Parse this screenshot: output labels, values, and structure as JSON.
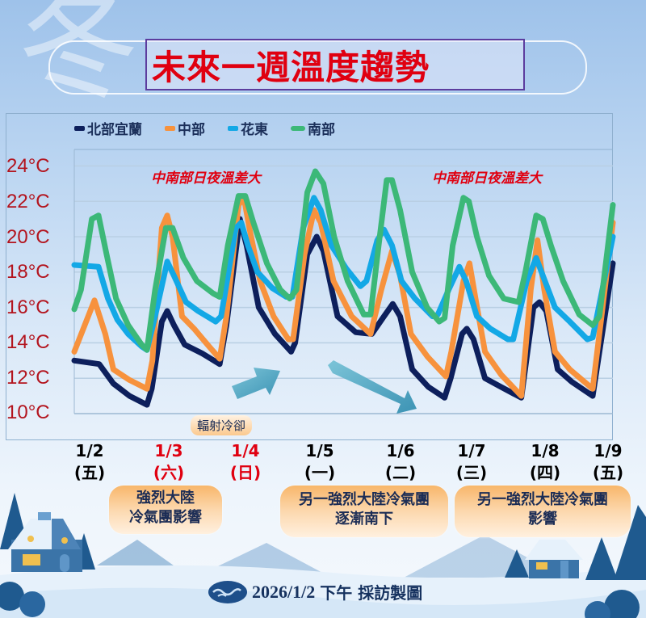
{
  "header": {
    "title": "未來一週溫度趨勢",
    "background_glyph": "冬"
  },
  "legend": [
    {
      "label": "北部宜蘭",
      "color": "#0d1f5c"
    },
    {
      "label": "中部",
      "color": "#f7923d"
    },
    {
      "label": "花東",
      "color": "#13a8e6"
    },
    {
      "label": "南部",
      "color": "#3cb878"
    }
  ],
  "annotations": {
    "left": "中南部日夜溫差大",
    "right": "中南部日夜溫差大",
    "radiative_cooling": "輻射冷卻"
  },
  "callouts": [
    {
      "line1": "強烈大陸",
      "line2": "冷氣團影響"
    },
    {
      "line1": "另一強烈大陸冷氣團",
      "line2": "逐漸南下"
    },
    {
      "line1": "另一強烈大陸冷氣團",
      "line2": "影響"
    }
  ],
  "footer": {
    "date": "2026/1/2",
    "text": "下午 採訪製圖"
  },
  "chart_data": {
    "type": "line",
    "title": "未來一週溫度趨勢",
    "xlabel": "",
    "ylabel": "",
    "ylim": [
      10,
      25
    ],
    "yticks": [
      "24°C",
      "22°C",
      "20°C",
      "18°C",
      "16°C",
      "14°C",
      "12°C",
      "10°C"
    ],
    "categories": [
      "1/2 (五)",
      "1/3 (六)",
      "1/4 (日)",
      "1/5 (一)",
      "1/6 (二)",
      "1/7 (三)",
      "1/8 (四)",
      "1/9 (五)"
    ],
    "x_labels": [
      {
        "date": "1/2",
        "day": "(五)",
        "color": "#142a5c"
      },
      {
        "date": "1/3",
        "day": "(六)",
        "color": "#e00010"
      },
      {
        "date": "1/4",
        "day": "(日)",
        "color": "#e00010"
      },
      {
        "date": "1/5",
        "day": "(一)",
        "color": "#142a5c"
      },
      {
        "date": "1/6",
        "day": "(二)",
        "color": "#142a5c"
      },
      {
        "date": "1/7",
        "day": "(三)",
        "color": "#142a5c"
      },
      {
        "date": "1/8",
        "day": "(四)",
        "color": "#142a5c"
      },
      {
        "date": "1/9",
        "day": "(五)",
        "color": "#142a5c"
      }
    ],
    "grid": true,
    "legend_position": "top",
    "x_unit": "day offset from 1/2 00:00 (0 = 1/2, 8 = 1/10)",
    "series": [
      {
        "name": "北部宜蘭",
        "color": "#0d1f5c",
        "points": [
          [
            0,
            13.0
          ],
          [
            0.37,
            12.8
          ],
          [
            0.58,
            11.7
          ],
          [
            0.82,
            11.0
          ],
          [
            1.08,
            10.5
          ],
          [
            1.15,
            11.4
          ],
          [
            1.3,
            15.2
          ],
          [
            1.38,
            15.8
          ],
          [
            1.48,
            15.0
          ],
          [
            1.64,
            13.9
          ],
          [
            1.9,
            13.4
          ],
          [
            2.16,
            12.8
          ],
          [
            2.26,
            15.0
          ],
          [
            2.46,
            21.0
          ],
          [
            2.56,
            19.5
          ],
          [
            2.74,
            16.0
          ],
          [
            2.98,
            14.5
          ],
          [
            3.22,
            13.5
          ],
          [
            3.28,
            14.0
          ],
          [
            3.46,
            19.0
          ],
          [
            3.6,
            20.0
          ],
          [
            3.7,
            19.2
          ],
          [
            3.91,
            15.5
          ],
          [
            4.18,
            14.6
          ],
          [
            4.42,
            14.5
          ],
          [
            4.6,
            15.5
          ],
          [
            4.73,
            16.2
          ],
          [
            4.84,
            15.5
          ],
          [
            5.02,
            12.5
          ],
          [
            5.26,
            11.5
          ],
          [
            5.5,
            10.9
          ],
          [
            5.59,
            12.0
          ],
          [
            5.76,
            14.5
          ],
          [
            5.83,
            14.8
          ],
          [
            5.93,
            14.2
          ],
          [
            6.1,
            12.0
          ],
          [
            6.34,
            11.5
          ],
          [
            6.64,
            10.9
          ],
          [
            6.82,
            16.0
          ],
          [
            6.91,
            16.3
          ],
          [
            7.01,
            15.8
          ],
          [
            7.18,
            12.5
          ],
          [
            7.39,
            11.8
          ],
          [
            7.7,
            11.0
          ],
          [
            8.0,
            18.5
          ]
        ]
      },
      {
        "name": "中部",
        "color": "#f7923d",
        "points": [
          [
            0,
            13.5
          ],
          [
            0.3,
            16.4
          ],
          [
            0.46,
            14.5
          ],
          [
            0.58,
            12.5
          ],
          [
            0.82,
            11.9
          ],
          [
            1.08,
            11.4
          ],
          [
            1.16,
            13.0
          ],
          [
            1.3,
            20.5
          ],
          [
            1.38,
            21.2
          ],
          [
            1.46,
            20.0
          ],
          [
            1.6,
            15.5
          ],
          [
            1.78,
            14.8
          ],
          [
            2.0,
            13.8
          ],
          [
            2.16,
            13.1
          ],
          [
            2.26,
            15.5
          ],
          [
            2.44,
            21.8
          ],
          [
            2.52,
            22.2
          ],
          [
            2.6,
            20.5
          ],
          [
            2.76,
            17.5
          ],
          [
            2.96,
            15.5
          ],
          [
            3.18,
            14.2
          ],
          [
            3.25,
            14.2
          ],
          [
            3.42,
            19.0
          ],
          [
            3.56,
            21.5
          ],
          [
            3.66,
            20.8
          ],
          [
            3.85,
            17.5
          ],
          [
            4.12,
            15.5
          ],
          [
            4.4,
            14.5
          ],
          [
            4.56,
            17.0
          ],
          [
            4.72,
            19.2
          ],
          [
            4.84,
            17.8
          ],
          [
            5.0,
            14.5
          ],
          [
            5.25,
            13.2
          ],
          [
            5.52,
            12.1
          ],
          [
            5.6,
            13.5
          ],
          [
            5.78,
            17.5
          ],
          [
            5.87,
            18.5
          ],
          [
            5.96,
            16.5
          ],
          [
            6.1,
            13.5
          ],
          [
            6.34,
            12.2
          ],
          [
            6.64,
            11.0
          ],
          [
            6.78,
            17.0
          ],
          [
            6.88,
            19.8
          ],
          [
            6.98,
            17.0
          ],
          [
            7.14,
            13.5
          ],
          [
            7.36,
            12.5
          ],
          [
            7.7,
            11.4
          ],
          [
            8.0,
            20.8
          ]
        ]
      },
      {
        "name": "花東",
        "color": "#13a8e6",
        "points": [
          [
            0,
            18.4
          ],
          [
            0.36,
            18.3
          ],
          [
            0.5,
            16.5
          ],
          [
            0.64,
            15.3
          ],
          [
            0.8,
            14.5
          ],
          [
            1.0,
            13.8
          ],
          [
            1.08,
            13.6
          ],
          [
            1.2,
            15.5
          ],
          [
            1.38,
            18.6
          ],
          [
            1.48,
            17.8
          ],
          [
            1.66,
            16.3
          ],
          [
            1.84,
            15.8
          ],
          [
            2.1,
            15.2
          ],
          [
            2.18,
            15.5
          ],
          [
            2.4,
            20.5
          ],
          [
            2.48,
            20.8
          ],
          [
            2.58,
            19.5
          ],
          [
            2.72,
            18.0
          ],
          [
            2.94,
            17.1
          ],
          [
            3.15,
            16.6
          ],
          [
            3.24,
            16.6
          ],
          [
            3.4,
            20.5
          ],
          [
            3.56,
            22.2
          ],
          [
            3.66,
            21.5
          ],
          [
            3.82,
            19.5
          ],
          [
            4.04,
            18.2
          ],
          [
            4.25,
            17.2
          ],
          [
            4.34,
            17.5
          ],
          [
            4.5,
            19.8
          ],
          [
            4.6,
            20.4
          ],
          [
            4.72,
            19.5
          ],
          [
            4.86,
            17.5
          ],
          [
            5.06,
            16.5
          ],
          [
            5.32,
            15.5
          ],
          [
            5.4,
            15.6
          ],
          [
            5.56,
            17.0
          ],
          [
            5.72,
            18.3
          ],
          [
            5.82,
            17.5
          ],
          [
            5.98,
            15.5
          ],
          [
            6.18,
            14.8
          ],
          [
            6.44,
            14.2
          ],
          [
            6.52,
            14.2
          ],
          [
            6.72,
            17.5
          ],
          [
            6.86,
            18.8
          ],
          [
            6.96,
            17.8
          ],
          [
            7.14,
            16.0
          ],
          [
            7.36,
            15.2
          ],
          [
            7.62,
            14.2
          ],
          [
            7.7,
            14.3
          ],
          [
            8.0,
            20.0
          ]
        ]
      },
      {
        "name": "南部",
        "color": "#3cb878",
        "points": [
          [
            0,
            15.9
          ],
          [
            0.1,
            17.0
          ],
          [
            0.26,
            21.0
          ],
          [
            0.36,
            21.2
          ],
          [
            0.48,
            19.0
          ],
          [
            0.62,
            16.5
          ],
          [
            0.8,
            15.0
          ],
          [
            1.0,
            13.9
          ],
          [
            1.08,
            13.6
          ],
          [
            1.2,
            17.0
          ],
          [
            1.36,
            20.5
          ],
          [
            1.46,
            20.5
          ],
          [
            1.62,
            18.8
          ],
          [
            1.82,
            17.5
          ],
          [
            2.06,
            16.8
          ],
          [
            2.16,
            16.6
          ],
          [
            2.28,
            19.5
          ],
          [
            2.44,
            22.3
          ],
          [
            2.54,
            22.3
          ],
          [
            2.66,
            20.8
          ],
          [
            2.86,
            18.5
          ],
          [
            3.06,
            17.0
          ],
          [
            3.2,
            16.5
          ],
          [
            3.3,
            17.0
          ],
          [
            3.46,
            22.5
          ],
          [
            3.58,
            23.7
          ],
          [
            3.7,
            23.0
          ],
          [
            3.86,
            20.0
          ],
          [
            4.06,
            17.5
          ],
          [
            4.3,
            15.6
          ],
          [
            4.4,
            15.6
          ],
          [
            4.52,
            19.5
          ],
          [
            4.64,
            23.2
          ],
          [
            4.72,
            23.2
          ],
          [
            4.84,
            21.5
          ],
          [
            5.02,
            18.0
          ],
          [
            5.24,
            16.0
          ],
          [
            5.42,
            15.2
          ],
          [
            5.5,
            15.4
          ],
          [
            5.62,
            19.5
          ],
          [
            5.78,
            22.2
          ],
          [
            5.86,
            22.0
          ],
          [
            5.98,
            20.0
          ],
          [
            6.16,
            17.8
          ],
          [
            6.38,
            16.5
          ],
          [
            6.6,
            16.3
          ],
          [
            6.7,
            18.0
          ],
          [
            6.86,
            21.2
          ],
          [
            6.96,
            21.0
          ],
          [
            7.08,
            19.5
          ],
          [
            7.26,
            17.5
          ],
          [
            7.5,
            15.6
          ],
          [
            7.7,
            15.0
          ],
          [
            7.8,
            15.5
          ],
          [
            8.0,
            21.8
          ]
        ]
      }
    ]
  }
}
